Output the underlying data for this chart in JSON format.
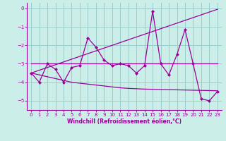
{
  "x": [
    0,
    1,
    2,
    3,
    4,
    5,
    6,
    7,
    8,
    9,
    10,
    11,
    12,
    13,
    14,
    15,
    16,
    17,
    18,
    19,
    20,
    21,
    22,
    23
  ],
  "line_zigzag": [
    -3.5,
    -4.0,
    -3.0,
    -3.3,
    -4.0,
    -3.2,
    -3.1,
    -1.6,
    -2.1,
    -2.8,
    -3.1,
    -3.0,
    -3.1,
    -3.5,
    -3.1,
    -0.15,
    -3.0,
    -3.6,
    -2.5,
    -1.15,
    -3.0,
    -4.9,
    -5.0,
    -4.5
  ],
  "line_flat": [
    -3.0,
    -3.0,
    -3.0,
    -3.0,
    -3.0,
    -3.0,
    -3.0,
    -3.0,
    -3.0,
    -3.0,
    -3.0,
    -3.0,
    -3.0,
    -3.0,
    -3.0,
    -3.0,
    -3.0,
    -3.0,
    -3.0,
    -3.0,
    -3.0,
    -3.0,
    -3.0,
    -3.0
  ],
  "line_up": [
    -3.5,
    -3.35,
    -3.2,
    -3.05,
    -2.9,
    -2.75,
    -2.6,
    -2.45,
    -2.3,
    -2.15,
    -2.0,
    -1.85,
    -1.7,
    -1.55,
    -1.4,
    -1.25,
    -1.1,
    -0.95,
    -0.8,
    -0.65,
    -0.5,
    -0.35,
    -0.2,
    -0.05
  ],
  "line_down": [
    -3.5,
    -3.6,
    -3.7,
    -3.8,
    -3.9,
    -4.0,
    -4.05,
    -4.1,
    -4.15,
    -4.2,
    -4.25,
    -4.3,
    -4.33,
    -4.35,
    -4.37,
    -4.38,
    -4.39,
    -4.4,
    -4.41,
    -4.42,
    -4.43,
    -4.44,
    -4.45,
    -4.46
  ],
  "color": "#990099",
  "bg_color": "#cceee8",
  "grid_color": "#99cccc",
  "xlabel": "Windchill (Refroidissement éolien,°C)",
  "ylim": [
    -5.5,
    0.3
  ],
  "xlim": [
    -0.5,
    23.5
  ],
  "yticks": [
    0,
    -1,
    -2,
    -3,
    -4,
    -5
  ],
  "xticks": [
    0,
    1,
    2,
    3,
    4,
    5,
    6,
    7,
    8,
    9,
    10,
    11,
    12,
    13,
    14,
    15,
    16,
    17,
    18,
    19,
    20,
    21,
    22,
    23
  ]
}
